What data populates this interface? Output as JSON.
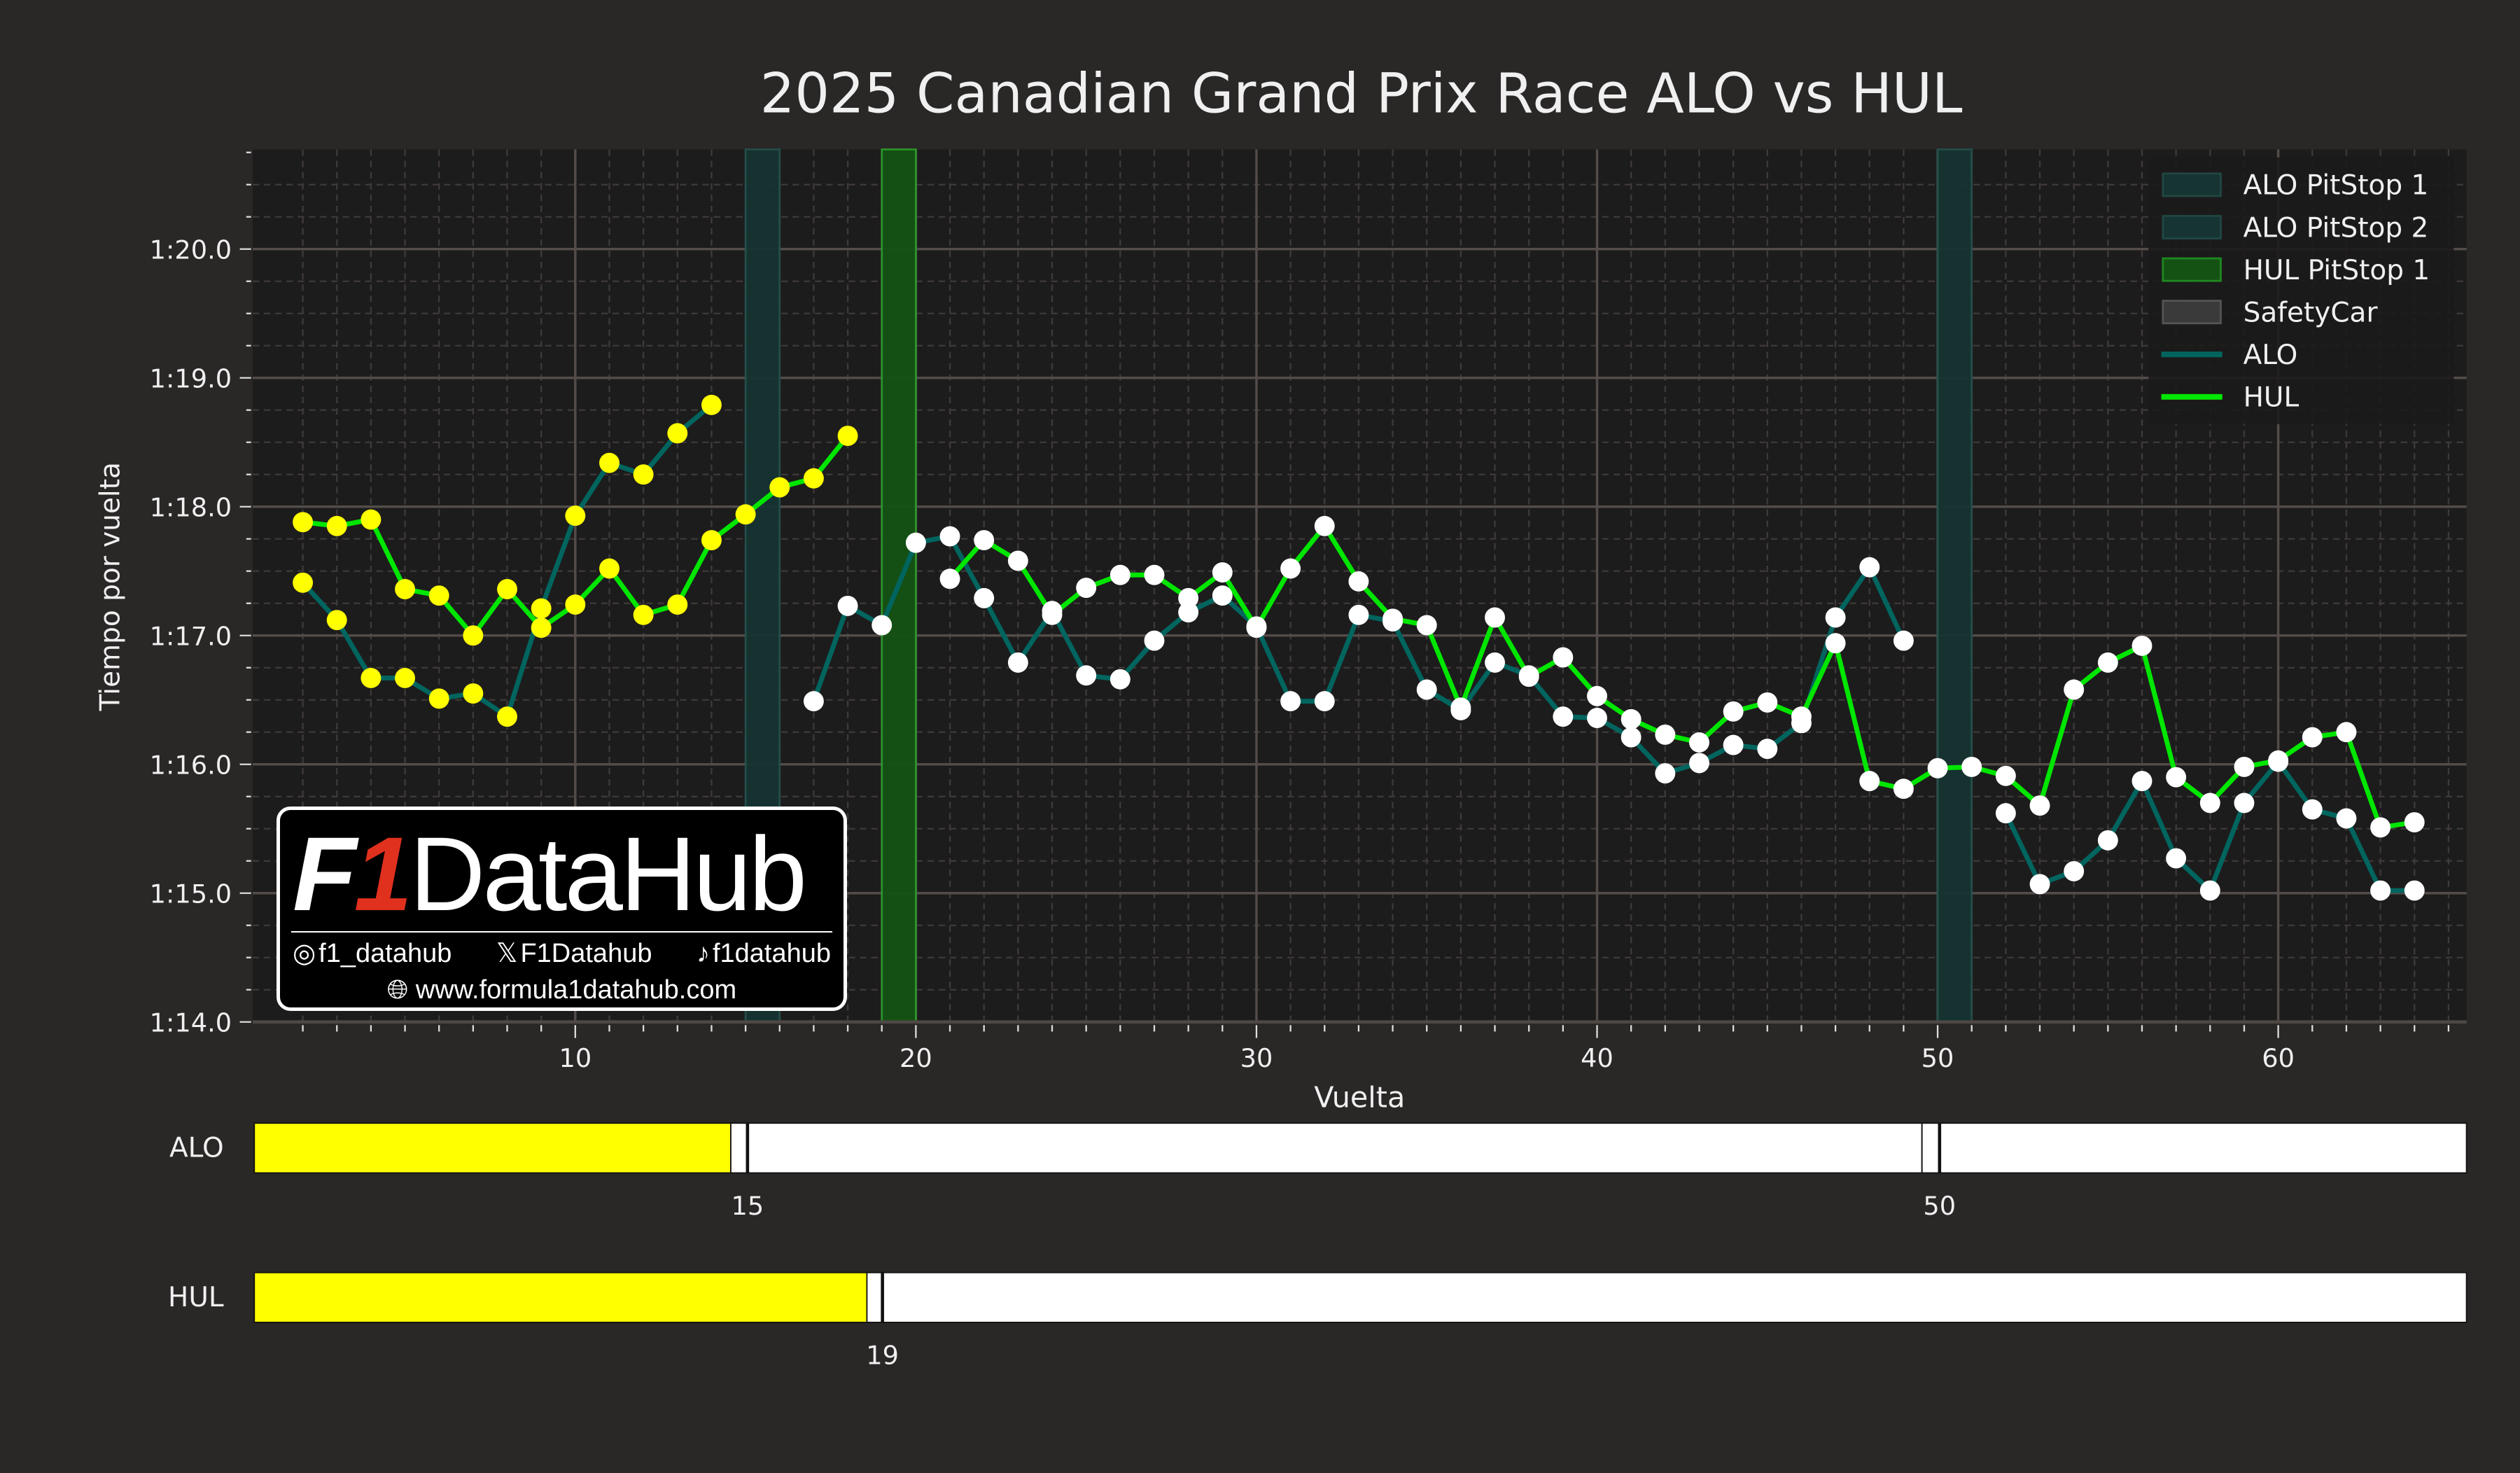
{
  "title": "2025 Canadian Grand Prix Race ALO vs HUL",
  "colors": {
    "background": "#2a2727",
    "plot_bg": "#1d1c1c",
    "alo_line": "#00655f",
    "hul_line": "#00e600",
    "marker_soft": "#ffff00",
    "marker_hard": "#ffffff",
    "alo_pit_band": "#163432",
    "hul_pit_band": "#145214",
    "safety_car": "#3a3a3a",
    "grid_major": "#534c49",
    "grid_minor": "#3e3a39"
  },
  "legend": {
    "items": [
      {
        "label": "ALO PitStop 1",
        "type": "patch",
        "color": "#163432"
      },
      {
        "label": "ALO PitStop 2",
        "type": "patch",
        "color": "#163432"
      },
      {
        "label": "HUL PitStop 1",
        "type": "patch",
        "color": "#145214"
      },
      {
        "label": "SafetyCar",
        "type": "patch",
        "color": "#3a3a3a"
      },
      {
        "label": "ALO",
        "type": "line",
        "color": "#00655f"
      },
      {
        "label": "HUL",
        "type": "line",
        "color": "#00e600"
      }
    ]
  },
  "watermark": {
    "brand_f": "F",
    "brand_1": "1",
    "brand_rest": "DataHub",
    "instagram": "f1_datahub",
    "x_handle": "F1Datahub",
    "tiktok": "f1datahub",
    "website": "www.formula1datahub.com"
  },
  "stints": {
    "rows": [
      {
        "driver": "ALO",
        "segments": [
          {
            "from": 1,
            "to": 15,
            "compound": "SOFT",
            "color": "#ffff00"
          },
          {
            "from": 15,
            "to": 50,
            "compound": "HARD",
            "color": "#ffffff"
          },
          {
            "from": 50,
            "to": 66,
            "compound": "HARD",
            "color": "#ffffff"
          }
        ],
        "pit_labels": [
          "15",
          "50"
        ]
      },
      {
        "driver": "HUL",
        "segments": [
          {
            "from": 1,
            "to": 19,
            "compound": "SOFT",
            "color": "#ffff00"
          },
          {
            "from": 19,
            "to": 66,
            "compound": "HARD",
            "color": "#ffffff"
          }
        ],
        "pit_labels": [
          "19"
        ]
      }
    ]
  },
  "chart_data": {
    "type": "line",
    "title": "2025 Canadian Grand Prix Race ALO vs HUL",
    "xlabel": "Vuelta",
    "ylabel": "Tiempo por vuelta",
    "xlim": [
      1,
      66
    ],
    "ylim": [
      74.0,
      80.75
    ],
    "xticks": [
      10,
      20,
      30,
      40,
      50,
      60
    ],
    "xtick_labels": [
      "10",
      "20",
      "30",
      "40",
      "50",
      "60"
    ],
    "yticks": [
      74,
      75,
      76,
      77,
      78,
      79,
      80
    ],
    "ytick_labels": [
      "1:14.0",
      "1:15.0",
      "1:16.0",
      "1:17.0",
      "1:18.0",
      "1:19.0",
      "1:20.0"
    ],
    "grid": true,
    "legend_position": "upper right",
    "shaded_regions": [
      {
        "label": "ALO PitStop 1",
        "x0": 15,
        "x1": 16
      },
      {
        "label": "ALO PitStop 2",
        "x0": 50,
        "x1": 51
      },
      {
        "label": "HUL PitStop 1",
        "x0": 19,
        "x1": 20
      }
    ],
    "series": [
      {
        "name": "ALO",
        "color": "#00655f",
        "x": [
          2,
          3,
          4,
          5,
          6,
          7,
          8,
          9,
          10,
          11,
          12,
          13,
          14,
          17,
          18,
          19,
          20,
          21,
          22,
          23,
          24,
          25,
          26,
          27,
          28,
          29,
          30,
          31,
          32,
          33,
          34,
          35,
          36,
          37,
          38,
          39,
          40,
          41,
          42,
          43,
          44,
          45,
          46,
          47,
          48,
          49,
          52,
          53,
          54,
          55,
          56,
          57,
          58,
          59,
          60,
          61,
          62,
          63,
          64
        ],
        "values": [
          77.41,
          77.12,
          76.67,
          76.67,
          76.51,
          76.55,
          76.37,
          77.21,
          77.93,
          78.34,
          78.25,
          78.57,
          78.79,
          76.49,
          77.23,
          77.08,
          77.72,
          77.77,
          77.29,
          76.79,
          77.19,
          76.69,
          76.66,
          76.96,
          77.18,
          77.31,
          77.07,
          76.49,
          76.49,
          77.16,
          77.11,
          76.58,
          76.42,
          76.79,
          76.69,
          76.37,
          76.36,
          76.21,
          75.93,
          76.01,
          76.15,
          76.12,
          76.32,
          77.14,
          77.53,
          76.96,
          75.62,
          75.07,
          75.17,
          75.41,
          75.87,
          75.27,
          75.02,
          75.7,
          76.02,
          75.65,
          75.58,
          75.02,
          75.02
        ],
        "compound": [
          "S",
          "S",
          "S",
          "S",
          "S",
          "S",
          "S",
          "S",
          "S",
          "S",
          "S",
          "S",
          "S",
          "H",
          "H",
          "H",
          "H",
          "H",
          "H",
          "H",
          "H",
          "H",
          "H",
          "H",
          "H",
          "H",
          "H",
          "H",
          "H",
          "H",
          "H",
          "H",
          "H",
          "H",
          "H",
          "H",
          "H",
          "H",
          "H",
          "H",
          "H",
          "H",
          "H",
          "H",
          "H",
          "H",
          "H",
          "H",
          "H",
          "H",
          "H",
          "H",
          "H",
          "H",
          "H",
          "H",
          "H",
          "H",
          "H"
        ]
      },
      {
        "name": "HUL",
        "color": "#00e600",
        "x": [
          2,
          3,
          4,
          5,
          6,
          7,
          8,
          9,
          10,
          11,
          12,
          13,
          14,
          15,
          16,
          17,
          18,
          21,
          22,
          23,
          24,
          25,
          26,
          27,
          28,
          29,
          30,
          31,
          32,
          33,
          34,
          35,
          36,
          37,
          38,
          39,
          40,
          41,
          42,
          43,
          44,
          45,
          46,
          47,
          48,
          49,
          50,
          51,
          52,
          53,
          54,
          55,
          56,
          57,
          58,
          59,
          60,
          61,
          62,
          63,
          64
        ],
        "values": [
          77.88,
          77.85,
          77.9,
          77.36,
          77.31,
          77.0,
          77.36,
          77.06,
          77.24,
          77.52,
          77.16,
          77.24,
          77.74,
          77.94,
          78.15,
          78.22,
          78.55,
          77.44,
          77.74,
          77.58,
          77.16,
          77.37,
          77.47,
          77.47,
          77.29,
          77.49,
          77.06,
          77.52,
          77.85,
          77.42,
          77.13,
          77.08,
          76.44,
          77.14,
          76.68,
          76.83,
          76.53,
          76.35,
          76.23,
          76.17,
          76.41,
          76.48,
          76.37,
          76.94,
          75.87,
          75.81,
          75.97,
          75.98,
          75.91,
          75.68,
          76.58,
          76.79,
          76.92,
          75.9,
          75.7,
          75.98,
          76.03,
          76.21,
          76.25,
          75.51,
          75.55
        ],
        "compound": [
          "S",
          "S",
          "S",
          "S",
          "S",
          "S",
          "S",
          "S",
          "S",
          "S",
          "S",
          "S",
          "S",
          "S",
          "S",
          "S",
          "S",
          "H",
          "H",
          "H",
          "H",
          "H",
          "H",
          "H",
          "H",
          "H",
          "H",
          "H",
          "H",
          "H",
          "H",
          "H",
          "H",
          "H",
          "H",
          "H",
          "H",
          "H",
          "H",
          "H",
          "H",
          "H",
          "H",
          "H",
          "H",
          "H",
          "H",
          "H",
          "H",
          "H",
          "H",
          "H",
          "H",
          "H",
          "H",
          "H",
          "H",
          "H",
          "H",
          "H",
          "H"
        ]
      }
    ]
  }
}
